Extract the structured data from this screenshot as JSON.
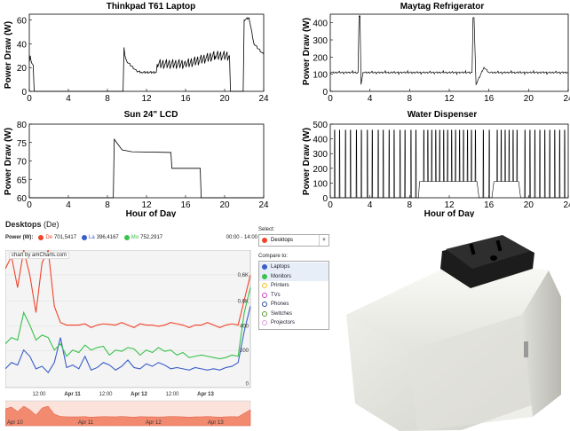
{
  "chart_data": [
    {
      "type": "line",
      "title": "Thinkpad T61 Laptop",
      "ylabel": "Power Draw (W)",
      "xlabel": "",
      "xlim": [
        0,
        24
      ],
      "ylim": [
        0,
        65
      ],
      "xticks": [
        "0",
        "4",
        "8",
        "12",
        "16",
        "20",
        "24"
      ],
      "yticks": [
        "0",
        "20",
        "40",
        "60"
      ],
      "series": [
        {
          "x": [
            0,
            0.1,
            0.2,
            0.4,
            0.5,
            9.6,
            9.7,
            9.8,
            10,
            11,
            11.5,
            13,
            13.1,
            16,
            19,
            20.5,
            20.6,
            21,
            21.9,
            22,
            22.5,
            23,
            24
          ],
          "y": [
            25,
            30,
            25,
            22,
            0,
            0,
            37,
            30,
            25,
            17,
            16,
            16,
            23,
            23,
            30,
            30,
            0,
            0,
            0,
            60,
            62,
            40,
            31
          ]
        }
      ]
    },
    {
      "type": "line",
      "title": "Maytag Refrigerator",
      "ylabel": "Power Draw (W)",
      "xlabel": "",
      "xlim": [
        0,
        24
      ],
      "ylim": [
        0,
        450
      ],
      "xticks": [
        "0",
        "4",
        "8",
        "12",
        "16",
        "20",
        "24"
      ],
      "yticks": [
        "0",
        "100",
        "200",
        "300",
        "400"
      ],
      "series": [
        {
          "x": [
            0,
            2.8,
            2.9,
            3.0,
            3.1,
            3.3,
            14.3,
            14.4,
            14.5,
            14.7,
            15.5,
            16,
            24
          ],
          "y": [
            110,
            110,
            440,
            440,
            40,
            110,
            110,
            430,
            430,
            40,
            140,
            110,
            110
          ]
        }
      ]
    },
    {
      "type": "line",
      "title": "Sun 24\" LCD",
      "ylabel": "Power Draw (W)",
      "xlabel": "Hour of Day",
      "xlim": [
        0,
        24
      ],
      "ylim": [
        60,
        80
      ],
      "xticks": [
        "0",
        "4",
        "8",
        "12",
        "16",
        "20",
        "24"
      ],
      "yticks": [
        "60",
        "65",
        "70",
        "75",
        "80"
      ],
      "series": [
        {
          "x": [
            0,
            8.6,
            8.7,
            8.8,
            9.5,
            10.5,
            14.5,
            14.6,
            17.5,
            17.6,
            24
          ],
          "y": [
            60,
            60,
            76,
            75.5,
            73,
            72.5,
            72.3,
            68,
            68,
            60,
            60
          ]
        }
      ]
    },
    {
      "type": "line",
      "title": "Water Dispenser",
      "ylabel": "Power Draw (W)",
      "xlabel": "Hour of Day",
      "xlim": [
        0,
        24
      ],
      "ylim": [
        0,
        500
      ],
      "xticks": [
        "0",
        "4",
        "8",
        "12",
        "16",
        "20",
        "24"
      ],
      "yticks": [
        "0",
        "100",
        "200",
        "300",
        "400",
        "500"
      ],
      "series": [
        {
          "x": [
            0,
            8.9,
            9,
            14.8,
            15,
            16.3,
            16.5,
            19,
            19.2,
            24
          ],
          "y": [
            0,
            0,
            110,
            110,
            0,
            0,
            110,
            110,
            0,
            0
          ],
          "spikes": [
            0.4,
            0.9,
            1.5,
            2.0,
            2.6,
            3.1,
            3.7,
            4.2,
            4.8,
            5.3,
            5.9,
            6.4,
            7.0,
            7.5,
            8.1,
            8.6,
            9.4,
            9.8,
            10.2,
            10.6,
            11.0,
            11.4,
            11.8,
            12.2,
            12.6,
            13.0,
            13.4,
            13.8,
            14.2,
            14.6,
            15.4,
            16.0,
            16.8,
            17.2,
            17.6,
            18.0,
            18.4,
            18.8,
            19.6,
            20.1,
            20.6,
            21.1,
            21.6,
            22.1,
            22.6,
            23.1,
            23.6
          ],
          "spike_value": 460
        }
      ]
    },
    {
      "type": "line",
      "title": "Desktops (De)",
      "ylim": [
        0,
        1100
      ],
      "yticks": [
        "0",
        "200",
        "400",
        "0,6K",
        "0,6K"
      ],
      "xticks": [
        "12:00",
        "Apr 11",
        "12:00",
        "Apr 12",
        "12:00",
        "Apr 13"
      ],
      "series": [
        {
          "name": "De",
          "value": "701,5417",
          "color": "#f0442a",
          "values": [
            950,
            1050,
            800,
            1100,
            900,
            600,
            1000,
            1100,
            650,
            520,
            500,
            500,
            500,
            510,
            480,
            500,
            510,
            505,
            500,
            520,
            500,
            480,
            510,
            500,
            500,
            490,
            500,
            520,
            510,
            500,
            480,
            500,
            500,
            520,
            500,
            480,
            500,
            510,
            500,
            700,
            900
          ]
        },
        {
          "name": "Mo",
          "value": "752,2917",
          "color": "#38c24a",
          "values": [
            350,
            400,
            380,
            600,
            500,
            380,
            420,
            400,
            300,
            350,
            250,
            300,
            280,
            340,
            300,
            320,
            330,
            260,
            300,
            290,
            320,
            310,
            260,
            300,
            280,
            320,
            290,
            300,
            260,
            280,
            240,
            250,
            260,
            250,
            240,
            230,
            240,
            260,
            250,
            600,
            800
          ]
        },
        {
          "name": "La",
          "value": "396,4167",
          "color": "#3a5ec8",
          "values": [
            150,
            200,
            180,
            300,
            250,
            150,
            170,
            120,
            200,
            400,
            160,
            180,
            150,
            250,
            140,
            160,
            200,
            180,
            140,
            170,
            220,
            160,
            150,
            190,
            170,
            200,
            180,
            150,
            160,
            150,
            140,
            160,
            150,
            140,
            150,
            140,
            160,
            170,
            200,
            450,
            650
          ]
        }
      ]
    }
  ],
  "dashboard": {
    "title": "Desktops",
    "title_suffix": "(De)",
    "power_label": "Power (W):",
    "time_range": "00:00 - 14:00",
    "credit": "chart by amCharts.com",
    "navigator_labels": [
      "Apr 10",
      "Apr 11",
      "Apr 12",
      "Apr 13"
    ],
    "select_label": "Select:",
    "selected": "Desktops",
    "compare_label": "Compare to:",
    "compare_items": [
      {
        "label": "Laptops",
        "color": "#3a5ec8",
        "filled": true
      },
      {
        "label": "Monitors",
        "color": "#38c24a",
        "filled": true
      },
      {
        "label": "Printers",
        "color": "#f0c020",
        "filled": false
      },
      {
        "label": "TVs",
        "color": "#d040c0",
        "filled": false
      },
      {
        "label": "Phones",
        "color": "#2a4a9a",
        "filled": false
      },
      {
        "label": "Switches",
        "color": "#5a9a30",
        "filled": false
      },
      {
        "label": "Projectors",
        "color": "#d8a0d8",
        "filled": false
      }
    ]
  }
}
